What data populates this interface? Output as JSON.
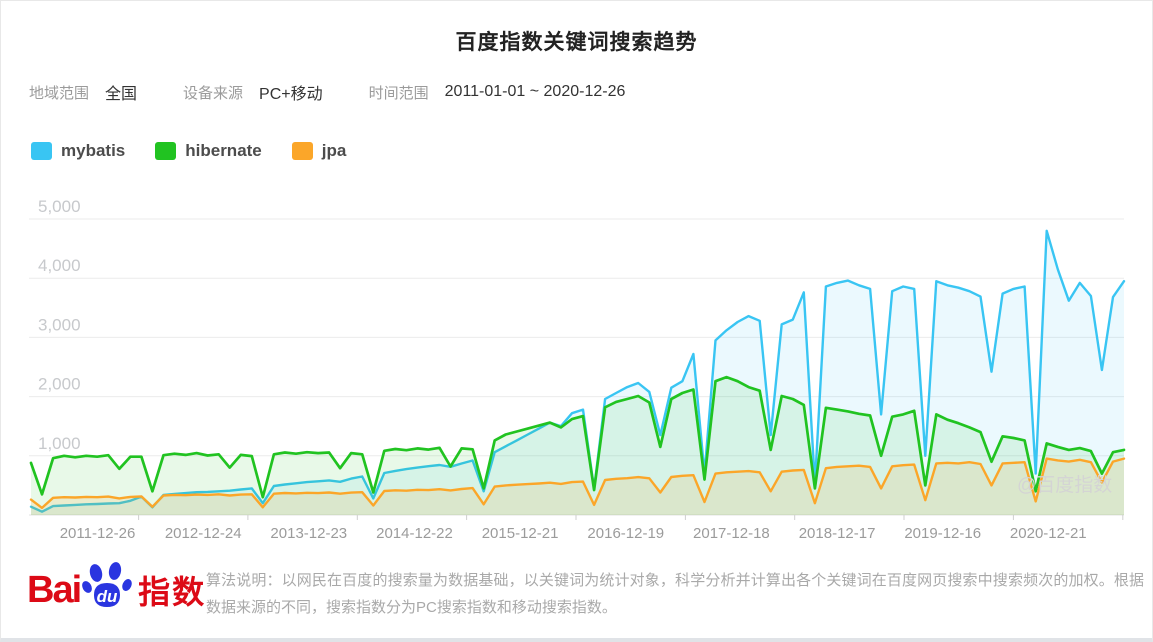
{
  "header": {
    "title": "百度指数关键词搜索趋势"
  },
  "filters": {
    "region_label": "地域范围",
    "region_value": "全国",
    "device_label": "设备来源",
    "device_value": "PC+移动",
    "time_label": "时间范围",
    "time_value": "2011-01-01 ~ 2020-12-26"
  },
  "watermark": "@百度指数",
  "footer": {
    "logo_bai": "Bai",
    "logo_du": "du",
    "logo_suffix": "指数",
    "description": "算法说明：以网民在百度的搜索量为数据基础，以关键词为统计对象，科学分析并计算出各个关键词在百度网页搜索中搜索频次的加权。根据数据来源的不同，搜索指数分为PC搜索指数和移动搜索指数。"
  },
  "chart_data": {
    "type": "line",
    "title": "百度指数关键词搜索趋势",
    "x_range": [
      "2011-01-01",
      "2020-12-26"
    ],
    "x_note": "weekly Baidu search index, approximated at 10 samples per year; deep notches are Chinese-New-Year / National-Day holiday dips",
    "x_tick_labels": [
      "2011-12-26",
      "2012-12-24",
      "2013-12-23",
      "2014-12-22",
      "2015-12-21",
      "2016-12-19",
      "2017-12-18",
      "2018-12-17",
      "2019-12-16",
      "2020-12-21"
    ],
    "y_ticks": [
      1000,
      2000,
      3000,
      4000,
      5000
    ],
    "y_tick_labels": [
      "1,000",
      "2,000",
      "3,000",
      "4,000",
      "5,000"
    ],
    "ylim": [
      0,
      5000
    ],
    "grid": true,
    "legend_position": "top-left",
    "series": [
      {
        "name": "mybatis",
        "color": "#39c5f3",
        "values": [
          140,
          55,
          150,
          160,
          170,
          180,
          185,
          195,
          200,
          240,
          310,
          130,
          340,
          355,
          370,
          385,
          390,
          400,
          410,
          430,
          450,
          200,
          490,
          515,
          535,
          555,
          570,
          585,
          560,
          615,
          650,
          280,
          710,
          745,
          775,
          800,
          825,
          845,
          815,
          870,
          920,
          400,
          1060,
          1160,
          1260,
          1360,
          1460,
          1560,
          1500,
          1720,
          1780,
          450,
          1960,
          2060,
          2160,
          2230,
          2080,
          1350,
          2150,
          2260,
          2720,
          700,
          2950,
          3120,
          3260,
          3360,
          3280,
          1350,
          3220,
          3300,
          3760,
          520,
          3860,
          3920,
          3960,
          3880,
          3820,
          1700,
          3780,
          3860,
          3820,
          1000,
          3950,
          3880,
          3840,
          3780,
          3690,
          2420,
          3740,
          3820,
          3860,
          700,
          4800,
          4150,
          3620,
          3920,
          3700,
          2450,
          3680,
          3950
        ]
      },
      {
        "name": "hibernate",
        "color": "#21c321",
        "values": [
          880,
          350,
          960,
          1000,
          975,
          1000,
          985,
          1010,
          780,
          985,
          985,
          400,
          1010,
          1035,
          1015,
          1045,
          1005,
          1025,
          800,
          1015,
          995,
          300,
          1025,
          1055,
          1035,
          1060,
          1045,
          1055,
          790,
          1045,
          1025,
          380,
          1085,
          1115,
          1095,
          1125,
          1105,
          1135,
          820,
          1125,
          1110,
          450,
          1260,
          1360,
          1410,
          1460,
          1510,
          1560,
          1480,
          1620,
          1670,
          420,
          1820,
          1910,
          1960,
          2010,
          1900,
          1150,
          1960,
          2060,
          2120,
          600,
          2260,
          2330,
          2260,
          2160,
          2100,
          1100,
          2010,
          1960,
          1860,
          450,
          1810,
          1780,
          1750,
          1710,
          1680,
          1000,
          1660,
          1700,
          1760,
          500,
          1700,
          1610,
          1550,
          1480,
          1400,
          900,
          1330,
          1300,
          1260,
          400,
          1210,
          1150,
          1100,
          1130,
          1080,
          700,
          1060,
          1100
        ]
      },
      {
        "name": "jpa",
        "color": "#fba629",
        "values": [
          260,
          120,
          290,
          300,
          295,
          305,
          300,
          310,
          280,
          305,
          315,
          140,
          330,
          340,
          335,
          345,
          340,
          350,
          330,
          345,
          350,
          130,
          360,
          372,
          365,
          375,
          370,
          380,
          360,
          378,
          385,
          160,
          405,
          418,
          410,
          425,
          420,
          435,
          415,
          440,
          455,
          180,
          480,
          500,
          512,
          522,
          532,
          545,
          525,
          556,
          565,
          170,
          592,
          612,
          622,
          640,
          620,
          380,
          642,
          662,
          672,
          220,
          700,
          722,
          732,
          742,
          722,
          400,
          732,
          752,
          762,
          200,
          790,
          812,
          822,
          832,
          812,
          450,
          822,
          842,
          852,
          250,
          872,
          882,
          872,
          892,
          862,
          500,
          872,
          882,
          892,
          230,
          952,
          922,
          902,
          932,
          892,
          550,
          902,
          952
        ]
      }
    ]
  }
}
